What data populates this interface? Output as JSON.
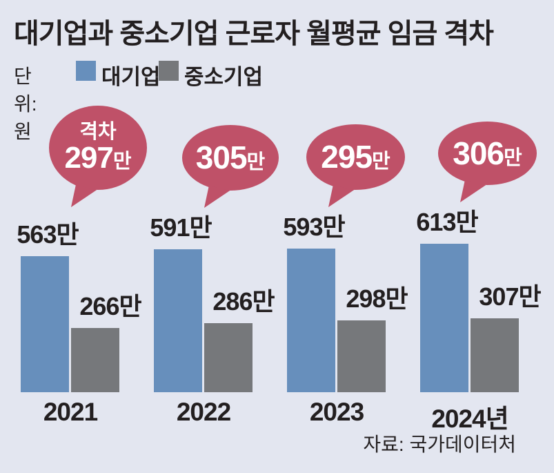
{
  "title": "대기업과 중소기업 근로자 월평균 임금 격차",
  "unit_label": "단위: 원",
  "legend": [
    {
      "label": "대기업",
      "color": "#678fbc"
    },
    {
      "label": "중소기업",
      "color": "#76787b"
    }
  ],
  "source": "자료: 국가데이터처",
  "colors": {
    "background": "#e3e6f0",
    "text": "#231f20",
    "bubble": "#bf5168",
    "bubble_text": "#ffffff",
    "large_company_bar": "#678fbc",
    "sme_bar": "#76787b"
  },
  "chart_data": {
    "type": "bar",
    "title": "대기업과 중소기업 근로자 월평균 임금 격차",
    "unit": "원",
    "categories": [
      "2021",
      "2022",
      "2023",
      "2024년"
    ],
    "series": [
      {
        "name": "대기업",
        "color": "#678fbc",
        "values": [
          563,
          591,
          593,
          613
        ],
        "value_labels": [
          "563만",
          "591만",
          "593만",
          "613만"
        ]
      },
      {
        "name": "중소기업",
        "color": "#76787b",
        "values": [
          266,
          286,
          298,
          307
        ],
        "value_labels": [
          "266만",
          "286만",
          "298만",
          "307만"
        ]
      }
    ],
    "gap_annotations": [
      {
        "prefix": "격차",
        "number": "297",
        "suffix": "만",
        "value": 297
      },
      {
        "number": "305",
        "suffix": "만",
        "value": 305
      },
      {
        "number": "295",
        "suffix": "만",
        "value": 295
      },
      {
        "number": "306",
        "suffix": "만",
        "value": 306
      }
    ],
    "legend_position": "top",
    "grid": false,
    "ylim": [
      0,
      650
    ]
  }
}
